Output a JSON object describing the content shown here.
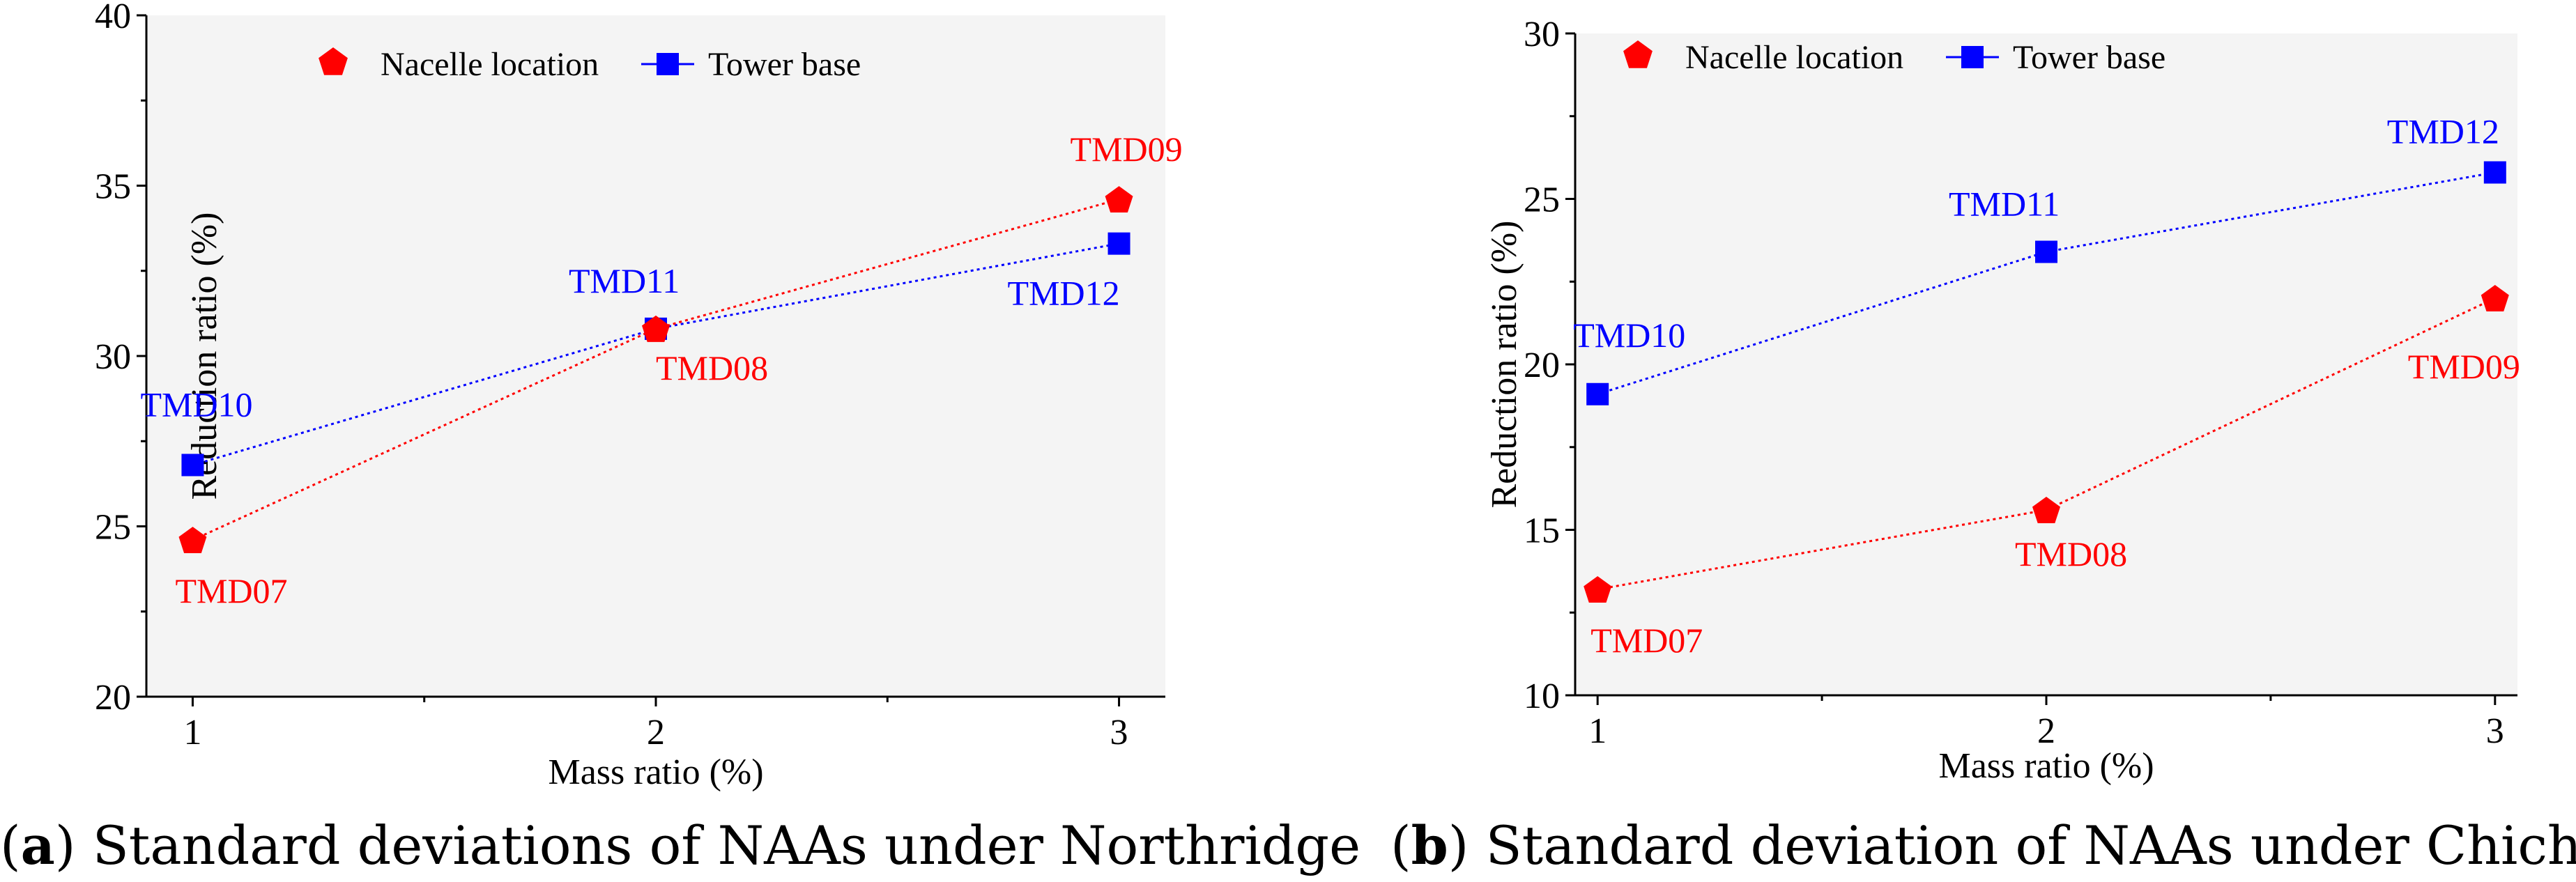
{
  "colors": {
    "nacelle": "#ff0000",
    "tower": "#0000ff"
  },
  "chart_data": [
    {
      "type": "line",
      "caption_letter": "a",
      "caption_text": "Standard deviations of NAAs under Northridge",
      "xlabel": "Mass ratio (%)",
      "ylabel": "Reduction ratio (%)",
      "x": [
        1,
        2,
        3
      ],
      "xticks": [
        "1",
        "2",
        "3"
      ],
      "xlim": [
        0.9,
        3.1
      ],
      "ylim": [
        20,
        40
      ],
      "yticks": [
        "20",
        "25",
        "30",
        "35",
        "40"
      ],
      "legend": {
        "position": "top-left",
        "entries": [
          "Nacelle location",
          "Tower base"
        ]
      },
      "series": [
        {
          "name": "Nacelle location",
          "marker": "pentagon",
          "values": [
            24.6,
            30.8,
            34.6
          ],
          "labels": [
            "TMD07",
            "TMD08",
            "TMD09"
          ]
        },
        {
          "name": "Tower base",
          "marker": "square",
          "values": [
            26.8,
            30.8,
            33.3
          ],
          "labels": [
            "TMD10",
            "TMD11",
            "TMD12"
          ]
        }
      ]
    },
    {
      "type": "line",
      "caption_letter": "b",
      "caption_text": "Standard deviation of NAAs under Chichi",
      "xlabel": "Mass ratio (%)",
      "ylabel": "Reduction ratio (%)",
      "x": [
        1,
        2,
        3
      ],
      "xticks": [
        "1",
        "2",
        "3"
      ],
      "xlim": [
        0.95,
        3.05
      ],
      "ylim": [
        10,
        30
      ],
      "yticks": [
        "10",
        "15",
        "20",
        "25",
        "30"
      ],
      "legend": {
        "position": "top-left",
        "entries": [
          "Nacelle location",
          "Tower base"
        ]
      },
      "series": [
        {
          "name": "Nacelle location",
          "marker": "pentagon",
          "values": [
            13.2,
            15.6,
            22.0
          ],
          "labels": [
            "TMD07",
            "TMD08",
            "TMD09"
          ]
        },
        {
          "name": "Tower base",
          "marker": "square",
          "values": [
            19.1,
            23.4,
            25.8
          ],
          "labels": [
            "TMD10",
            "TMD11",
            "TMD12"
          ]
        }
      ]
    }
  ]
}
